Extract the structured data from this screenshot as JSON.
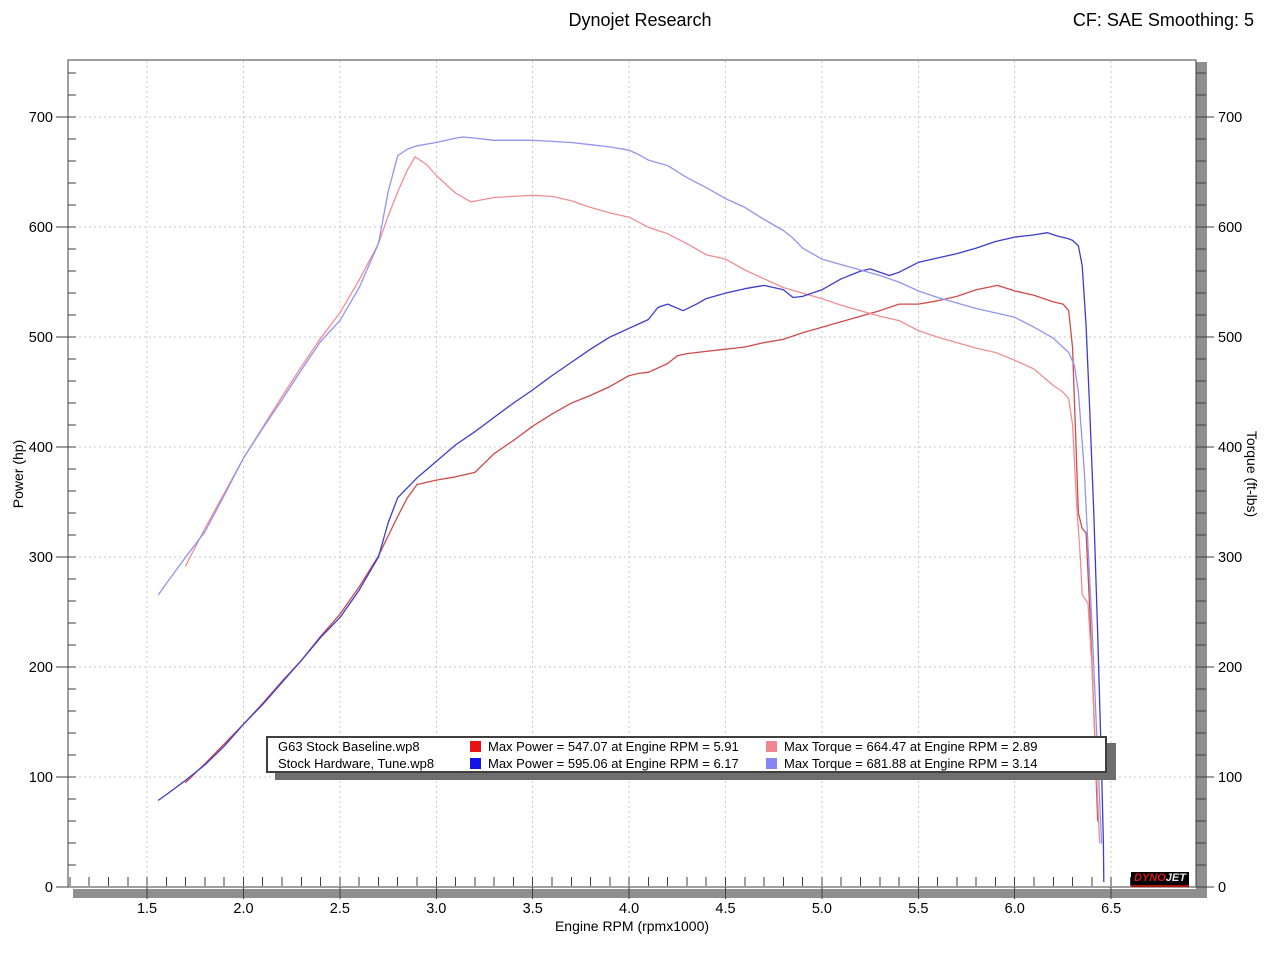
{
  "header": {
    "title": "Dynojet Research",
    "correction": "CF: SAE Smoothing: 5"
  },
  "chart_data": {
    "type": "line",
    "title": "Dynojet Research",
    "xlabel": "Engine RPM (rpmx1000)",
    "ylabel_left": "Power (hp)",
    "ylabel_right": "Torque (ft-lbs)",
    "xlim": [
      1.09,
      6.94
    ],
    "ylim": [
      0,
      752
    ],
    "x_major_ticks": [
      1.5,
      2.0,
      2.5,
      3.0,
      3.5,
      4.0,
      4.5,
      5.0,
      5.5,
      6.0,
      6.5
    ],
    "x_minor_step": 0.1,
    "y_major_ticks": [
      0,
      100,
      200,
      300,
      400,
      500,
      600,
      700
    ],
    "y_minor_step": 20,
    "grid": true,
    "grid_color": "#c9c9c9",
    "legend_position": "bottom-center",
    "series": [
      {
        "name": "G63 Stock Baseline.wp8 - Power (hp)",
        "color": "#cf4a4a",
        "max_label": "Max Power = 547.07 at Engine RPM = 5.91",
        "points": [
          [
            1.7,
            95
          ],
          [
            1.8,
            112
          ],
          [
            1.9,
            130
          ],
          [
            2.0,
            148
          ],
          [
            2.1,
            167
          ],
          [
            2.2,
            187
          ],
          [
            2.3,
            206
          ],
          [
            2.4,
            228
          ],
          [
            2.5,
            248
          ],
          [
            2.6,
            273
          ],
          [
            2.7,
            301
          ],
          [
            2.8,
            337
          ],
          [
            2.85,
            354
          ],
          [
            2.9,
            366
          ],
          [
            3.0,
            370
          ],
          [
            3.1,
            373
          ],
          [
            3.2,
            377
          ],
          [
            3.3,
            394
          ],
          [
            3.4,
            406
          ],
          [
            3.5,
            419
          ],
          [
            3.6,
            430
          ],
          [
            3.7,
            440
          ],
          [
            3.8,
            447
          ],
          [
            3.9,
            455
          ],
          [
            4.0,
            465
          ],
          [
            4.05,
            467
          ],
          [
            4.1,
            468
          ],
          [
            4.2,
            476
          ],
          [
            4.25,
            483
          ],
          [
            4.3,
            485
          ],
          [
            4.4,
            487
          ],
          [
            4.5,
            489
          ],
          [
            4.55,
            490
          ],
          [
            4.6,
            491
          ],
          [
            4.7,
            495
          ],
          [
            4.8,
            498
          ],
          [
            4.9,
            504
          ],
          [
            5.0,
            509
          ],
          [
            5.1,
            514
          ],
          [
            5.2,
            519
          ],
          [
            5.3,
            524
          ],
          [
            5.4,
            530
          ],
          [
            5.5,
            530
          ],
          [
            5.6,
            533
          ],
          [
            5.7,
            537
          ],
          [
            5.8,
            543
          ],
          [
            5.91,
            547
          ],
          [
            6.0,
            542
          ],
          [
            6.1,
            538
          ],
          [
            6.2,
            532
          ],
          [
            6.25,
            530
          ],
          [
            6.28,
            524
          ],
          [
            6.3,
            490
          ],
          [
            6.31,
            440
          ],
          [
            6.33,
            340
          ],
          [
            6.35,
            326
          ],
          [
            6.37,
            322
          ],
          [
            6.39,
            250
          ],
          [
            6.41,
            160
          ],
          [
            6.43,
            60
          ]
        ]
      },
      {
        "name": "G63 Stock Baseline.wp8 - Torque (ft-lbs)",
        "color": "#ef8e93",
        "max_label": "Max Torque = 664.47 at Engine RPM = 2.89",
        "points": [
          [
            1.7,
            292
          ],
          [
            1.8,
            326
          ],
          [
            1.9,
            358
          ],
          [
            2.0,
            390
          ],
          [
            2.1,
            418
          ],
          [
            2.2,
            446
          ],
          [
            2.3,
            473
          ],
          [
            2.4,
            499
          ],
          [
            2.5,
            522
          ],
          [
            2.6,
            552
          ],
          [
            2.7,
            585
          ],
          [
            2.75,
            610
          ],
          [
            2.8,
            632
          ],
          [
            2.85,
            652
          ],
          [
            2.89,
            664
          ],
          [
            2.95,
            657
          ],
          [
            3.0,
            647
          ],
          [
            3.1,
            631
          ],
          [
            3.18,
            623
          ],
          [
            3.3,
            627
          ],
          [
            3.4,
            628
          ],
          [
            3.5,
            629
          ],
          [
            3.6,
            628
          ],
          [
            3.7,
            624
          ],
          [
            3.8,
            618
          ],
          [
            3.9,
            613
          ],
          [
            4.0,
            609
          ],
          [
            4.1,
            600
          ],
          [
            4.2,
            594
          ],
          [
            4.3,
            585
          ],
          [
            4.4,
            575
          ],
          [
            4.5,
            571
          ],
          [
            4.6,
            561
          ],
          [
            4.7,
            553
          ],
          [
            4.8,
            545
          ],
          [
            4.9,
            540
          ],
          [
            5.0,
            535
          ],
          [
            5.1,
            529
          ],
          [
            5.2,
            524
          ],
          [
            5.3,
            519
          ],
          [
            5.4,
            515
          ],
          [
            5.5,
            506
          ],
          [
            5.6,
            500
          ],
          [
            5.7,
            495
          ],
          [
            5.8,
            490
          ],
          [
            5.9,
            486
          ],
          [
            6.0,
            479
          ],
          [
            6.1,
            471
          ],
          [
            6.2,
            456
          ],
          [
            6.25,
            450
          ],
          [
            6.28,
            444
          ],
          [
            6.3,
            420
          ],
          [
            6.32,
            350
          ],
          [
            6.34,
            300
          ],
          [
            6.35,
            266
          ],
          [
            6.38,
            258
          ],
          [
            6.4,
            200
          ],
          [
            6.42,
            120
          ],
          [
            6.44,
            40
          ]
        ]
      },
      {
        "name": "Stock Hardware, Tune.wp8 - Power (hp)",
        "color": "#3c3ccf",
        "max_label": "Max Power = 595.06 at Engine RPM = 6.17",
        "points": [
          [
            1.56,
            79
          ],
          [
            1.6,
            84
          ],
          [
            1.7,
            97
          ],
          [
            1.8,
            111
          ],
          [
            1.9,
            128
          ],
          [
            2.0,
            148
          ],
          [
            2.1,
            166
          ],
          [
            2.2,
            186
          ],
          [
            2.3,
            206
          ],
          [
            2.4,
            227
          ],
          [
            2.5,
            245
          ],
          [
            2.6,
            270
          ],
          [
            2.7,
            300
          ],
          [
            2.75,
            331
          ],
          [
            2.8,
            354
          ],
          [
            2.9,
            372
          ],
          [
            3.0,
            387
          ],
          [
            3.1,
            402
          ],
          [
            3.2,
            414
          ],
          [
            3.3,
            427
          ],
          [
            3.4,
            440
          ],
          [
            3.5,
            452
          ],
          [
            3.6,
            465
          ],
          [
            3.7,
            477
          ],
          [
            3.8,
            489
          ],
          [
            3.9,
            500
          ],
          [
            4.0,
            508
          ],
          [
            4.1,
            516
          ],
          [
            4.15,
            527
          ],
          [
            4.2,
            530
          ],
          [
            4.28,
            524
          ],
          [
            4.35,
            530
          ],
          [
            4.4,
            535
          ],
          [
            4.5,
            540
          ],
          [
            4.6,
            544
          ],
          [
            4.7,
            547
          ],
          [
            4.8,
            543
          ],
          [
            4.85,
            536
          ],
          [
            4.9,
            537
          ],
          [
            5.0,
            543
          ],
          [
            5.1,
            553
          ],
          [
            5.2,
            560
          ],
          [
            5.25,
            562
          ],
          [
            5.3,
            559
          ],
          [
            5.35,
            556
          ],
          [
            5.4,
            559
          ],
          [
            5.5,
            568
          ],
          [
            5.6,
            572
          ],
          [
            5.7,
            576
          ],
          [
            5.8,
            581
          ],
          [
            5.9,
            587
          ],
          [
            6.0,
            591
          ],
          [
            6.1,
            593
          ],
          [
            6.17,
            595
          ],
          [
            6.22,
            592
          ],
          [
            6.27,
            590
          ],
          [
            6.3,
            588
          ],
          [
            6.33,
            583
          ],
          [
            6.35,
            565
          ],
          [
            6.37,
            510
          ],
          [
            6.39,
            430
          ],
          [
            6.41,
            340
          ],
          [
            6.43,
            230
          ],
          [
            6.45,
            110
          ],
          [
            6.46,
            40
          ],
          [
            6.462,
            5
          ]
        ]
      },
      {
        "name": "Stock Hardware, Tune.wp8 - Torque (ft-lbs)",
        "color": "#9394ef",
        "max_label": "Max Torque = 681.88 at Engine RPM = 3.14",
        "points": [
          [
            1.56,
            266
          ],
          [
            1.6,
            276
          ],
          [
            1.7,
            300
          ],
          [
            1.8,
            323
          ],
          [
            1.9,
            356
          ],
          [
            2.0,
            390
          ],
          [
            2.1,
            417
          ],
          [
            2.2,
            443
          ],
          [
            2.3,
            470
          ],
          [
            2.4,
            496
          ],
          [
            2.5,
            515
          ],
          [
            2.6,
            545
          ],
          [
            2.7,
            585
          ],
          [
            2.75,
            632
          ],
          [
            2.8,
            665
          ],
          [
            2.85,
            671
          ],
          [
            2.9,
            674
          ],
          [
            3.0,
            677
          ],
          [
            3.1,
            681
          ],
          [
            3.14,
            682
          ],
          [
            3.2,
            681
          ],
          [
            3.3,
            679
          ],
          [
            3.4,
            679
          ],
          [
            3.5,
            679
          ],
          [
            3.6,
            678
          ],
          [
            3.7,
            677
          ],
          [
            3.8,
            675
          ],
          [
            3.9,
            673
          ],
          [
            4.0,
            670
          ],
          [
            4.05,
            666
          ],
          [
            4.1,
            661
          ],
          [
            4.2,
            656
          ],
          [
            4.3,
            645
          ],
          [
            4.4,
            636
          ],
          [
            4.5,
            626
          ],
          [
            4.6,
            618
          ],
          [
            4.7,
            607
          ],
          [
            4.8,
            597
          ],
          [
            4.85,
            590
          ],
          [
            4.9,
            581
          ],
          [
            5.0,
            571
          ],
          [
            5.1,
            566
          ],
          [
            5.2,
            561
          ],
          [
            5.3,
            556
          ],
          [
            5.4,
            550
          ],
          [
            5.5,
            542
          ],
          [
            5.6,
            536
          ],
          [
            5.7,
            531
          ],
          [
            5.8,
            526
          ],
          [
            5.9,
            522
          ],
          [
            6.0,
            518
          ],
          [
            6.1,
            509
          ],
          [
            6.2,
            499
          ],
          [
            6.28,
            486
          ],
          [
            6.31,
            474
          ],
          [
            6.33,
            450
          ],
          [
            6.36,
            380
          ],
          [
            6.38,
            310
          ],
          [
            6.4,
            240
          ],
          [
            6.42,
            160
          ],
          [
            6.44,
            80
          ],
          [
            6.45,
            40
          ]
        ]
      }
    ]
  },
  "legend": {
    "rows": [
      {
        "name": "G63 Stock Baseline.wp8",
        "power_color": "#e81414",
        "power_label": "Max Power = 547.07 at Engine RPM = 5.91",
        "torque_color": "#f2868e",
        "torque_label": "Max Torque = 664.47 at Engine RPM = 2.89"
      },
      {
        "name": "Stock Hardware, Tune.wp8",
        "power_color": "#1414e8",
        "power_label": "Max Power = 595.06 at Engine RPM = 6.17",
        "torque_color": "#8686f2",
        "torque_label": "Max Torque = 681.88 at Engine RPM = 3.14"
      }
    ]
  },
  "axes": {
    "xlabel": "Engine RPM (rpmx1000)",
    "ylabel_left": "Power (hp)",
    "ylabel_right": "Torque (ft-lbs)"
  },
  "logo": {
    "part1": "DYNO",
    "part2": "JET"
  }
}
